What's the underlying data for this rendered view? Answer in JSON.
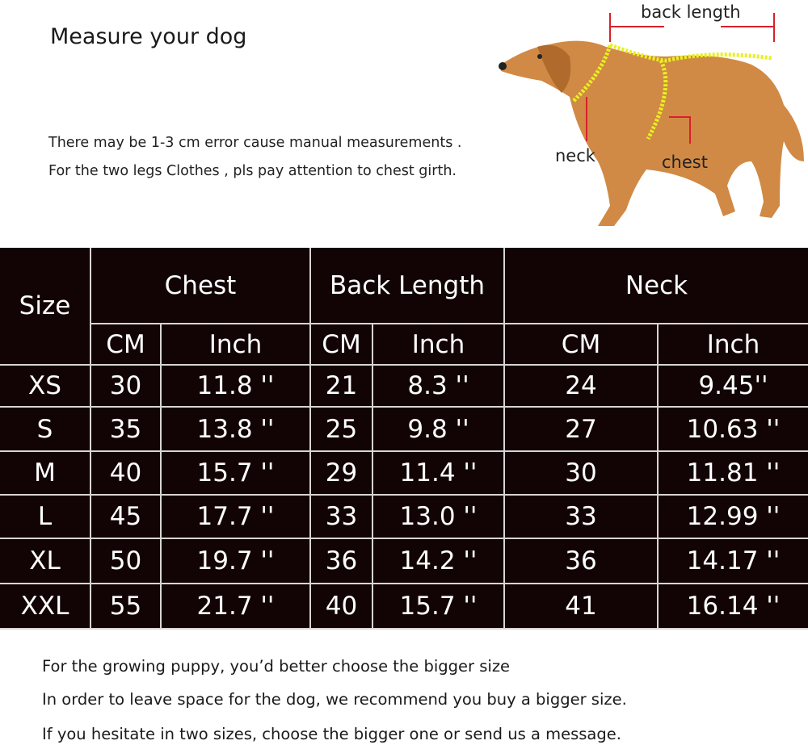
{
  "title": "Measure your dog",
  "notes": [
    "There may be 1-3 cm error cause manual measurements .",
    "For the two legs Clothes , pls pay attention to chest girth."
  ],
  "diagram": {
    "back_length": "back length",
    "neck": "neck",
    "chest": "chest",
    "tape_color": "#e8f020",
    "arrow_color": "#d8202a"
  },
  "table": {
    "size_header": "Size",
    "groups": [
      "Chest",
      "Back  Length",
      "Neck"
    ],
    "units": [
      "CM",
      "Inch",
      "CM",
      "Inch",
      "CM",
      "Inch"
    ],
    "rows": [
      [
        "XS",
        "30",
        "11.8  ''",
        "21",
        "8.3  ''",
        "24",
        "9.45''"
      ],
      [
        "S",
        "35",
        "13.8  ''",
        "25",
        "9.8  ''",
        "27",
        "10.63  ''"
      ],
      [
        "M",
        "40",
        "15.7  ''",
        "29",
        "11.4  ''",
        "30",
        "11.81  ''"
      ],
      [
        "L",
        "45",
        "17.7  ''",
        "33",
        "13.0  ''",
        "33",
        "12.99  ''"
      ],
      [
        "XL",
        "50",
        "19.7  ''",
        "36",
        "14.2  ''",
        "36",
        "14.17  ''"
      ],
      [
        "XXL",
        "55",
        "21.7  ''",
        "40",
        "15.7  ''",
        "41",
        "16.14  ''"
      ]
    ]
  },
  "footer": [
    "For the growing puppy, you’d better choose the bigger size",
    "In order to leave space for the dog, we recommend you buy a bigger size.",
    "If you  hesitate in two sizes, choose the bigger one or send us a message."
  ]
}
